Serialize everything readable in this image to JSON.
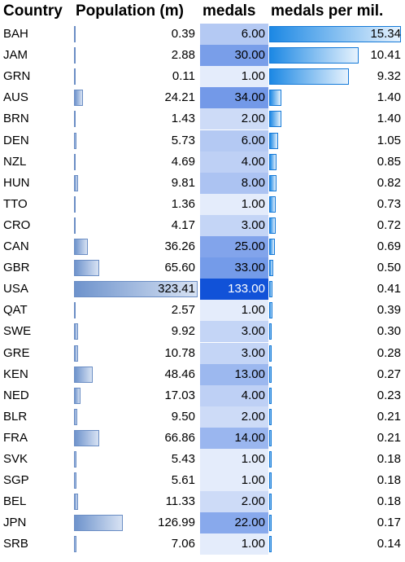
{
  "headers": {
    "country": "Country",
    "population": "Population (m)",
    "medals": "medals",
    "medals_per_mil": "medals per mil."
  },
  "chart_data": {
    "type": "table",
    "columns": [
      "Country",
      "Population (m)",
      "medals",
      "medals per mil."
    ],
    "rows": [
      {
        "country": "BAH",
        "population": "0.39",
        "medals": "6.00",
        "mpm": "15.34"
      },
      {
        "country": "JAM",
        "population": "2.88",
        "medals": "30.00",
        "mpm": "10.41"
      },
      {
        "country": "GRN",
        "population": "0.11",
        "medals": "1.00",
        "mpm": "9.32"
      },
      {
        "country": "AUS",
        "population": "24.21",
        "medals": "34.00",
        "mpm": "1.40"
      },
      {
        "country": "BRN",
        "population": "1.43",
        "medals": "2.00",
        "mpm": "1.40"
      },
      {
        "country": "DEN",
        "population": "5.73",
        "medals": "6.00",
        "mpm": "1.05"
      },
      {
        "country": "NZL",
        "population": "4.69",
        "medals": "4.00",
        "mpm": "0.85"
      },
      {
        "country": "HUN",
        "population": "9.81",
        "medals": "8.00",
        "mpm": "0.82"
      },
      {
        "country": "TTO",
        "population": "1.36",
        "medals": "1.00",
        "mpm": "0.73"
      },
      {
        "country": "CRO",
        "population": "4.17",
        "medals": "3.00",
        "mpm": "0.72"
      },
      {
        "country": "CAN",
        "population": "36.26",
        "medals": "25.00",
        "mpm": "0.69"
      },
      {
        "country": "GBR",
        "population": "65.60",
        "medals": "33.00",
        "mpm": "0.50"
      },
      {
        "country": "USA",
        "population": "323.41",
        "medals": "133.00",
        "mpm": "0.41"
      },
      {
        "country": "QAT",
        "population": "2.57",
        "medals": "1.00",
        "mpm": "0.39"
      },
      {
        "country": "SWE",
        "population": "9.92",
        "medals": "3.00",
        "mpm": "0.30"
      },
      {
        "country": "GRE",
        "population": "10.78",
        "medals": "3.00",
        "mpm": "0.28"
      },
      {
        "country": "KEN",
        "population": "48.46",
        "medals": "13.00",
        "mpm": "0.27"
      },
      {
        "country": "NED",
        "population": "17.03",
        "medals": "4.00",
        "mpm": "0.23"
      },
      {
        "country": "BLR",
        "population": "9.50",
        "medals": "2.00",
        "mpm": "0.21"
      },
      {
        "country": "FRA",
        "population": "66.86",
        "medals": "14.00",
        "mpm": "0.21"
      },
      {
        "country": "SVK",
        "population": "5.43",
        "medals": "1.00",
        "mpm": "0.18"
      },
      {
        "country": "SGP",
        "population": "5.61",
        "medals": "1.00",
        "mpm": "0.18"
      },
      {
        "country": "BEL",
        "population": "11.33",
        "medals": "2.00",
        "mpm": "0.18"
      },
      {
        "country": "JPN",
        "population": "126.99",
        "medals": "22.00",
        "mpm": "0.17"
      },
      {
        "country": "SRB",
        "population": "7.06",
        "medals": "1.00",
        "mpm": "0.14"
      }
    ],
    "formatting": {
      "population_data_bars": true,
      "medals_color_scale": [
        "#e4ecfb",
        "#1152d8"
      ],
      "medals_per_mil_data_bars": true
    }
  }
}
